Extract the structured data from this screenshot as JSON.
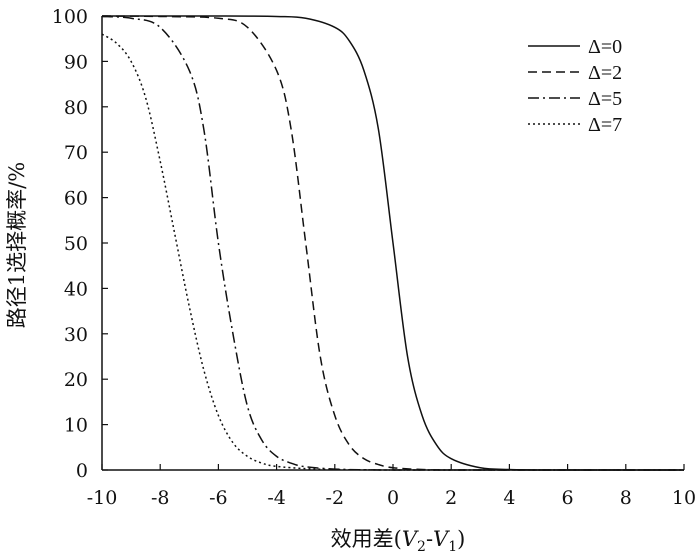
{
  "chart_data": {
    "type": "line",
    "title": "",
    "xlabel": "效用差(V2-V1)",
    "xlabel_parts": {
      "prefix": "效用差(",
      "v2": "V",
      "v2_sub": "2",
      "dash": "-",
      "v1": "V",
      "v1_sub": "1",
      "suffix": ")"
    },
    "ylabel": "路径1选择概率/%",
    "xlim": [
      -10,
      10
    ],
    "ylim": [
      0,
      100
    ],
    "xticks": [
      -10,
      -8,
      -6,
      -4,
      -2,
      0,
      2,
      4,
      6,
      8,
      10
    ],
    "yticks": [
      0,
      10,
      20,
      30,
      40,
      50,
      60,
      70,
      80,
      90,
      100
    ],
    "grid": false,
    "legend_position": "top-right",
    "series": [
      {
        "name": "Δ=0",
        "dash": "solid",
        "x": [
          -10,
          -6,
          -4,
          -3,
          -2,
          -1.5,
          -1,
          -0.5,
          0,
          0.5,
          1,
          1.5,
          2,
          3,
          4,
          5,
          6,
          8,
          10
        ],
        "y": [
          100,
          100,
          99.9,
          99.5,
          97.5,
          94.5,
          88,
          75,
          50,
          25,
          12,
          5.5,
          2.5,
          0.5,
          0.1,
          0,
          0,
          0,
          0
        ]
      },
      {
        "name": "Δ=2",
        "dash": "dashed",
        "x": [
          -10,
          -8,
          -6,
          -5,
          -4,
          -3.5,
          -3,
          -2.5,
          -2,
          -1.5,
          -1,
          -0.5,
          0,
          1,
          2,
          4,
          6,
          8,
          10
        ],
        "y": [
          100,
          99.9,
          99.5,
          97.5,
          88,
          75,
          50,
          25,
          12,
          5.5,
          2.5,
          1.2,
          0.5,
          0.1,
          0,
          0,
          0,
          0,
          0
        ]
      },
      {
        "name": "Δ=5",
        "dash": "dashdot",
        "x": [
          -10,
          -9,
          -8,
          -7,
          -6.5,
          -6,
          -5.5,
          -5,
          -4.5,
          -4,
          -3.5,
          -3,
          -2,
          -1,
          0,
          2,
          4,
          6,
          10
        ],
        "y": [
          99.9,
          99.5,
          97.5,
          88,
          75,
          50,
          30,
          14,
          6.5,
          3,
          1.5,
          0.7,
          0.2,
          0.05,
          0,
          0,
          0,
          0,
          0
        ]
      },
      {
        "name": "Δ=7",
        "dash": "dotted",
        "x": [
          -10,
          -9.5,
          -9,
          -8.5,
          -8,
          -7.5,
          -7,
          -6.5,
          -6,
          -5.5,
          -5,
          -4.5,
          -4,
          -3,
          -2,
          0,
          2,
          6,
          10
        ],
        "y": [
          96,
          94,
          90,
          82,
          68,
          52,
          36,
          22,
          12,
          6,
          3,
          1.5,
          0.8,
          0.3,
          0.1,
          0,
          0,
          0,
          0
        ]
      }
    ]
  }
}
